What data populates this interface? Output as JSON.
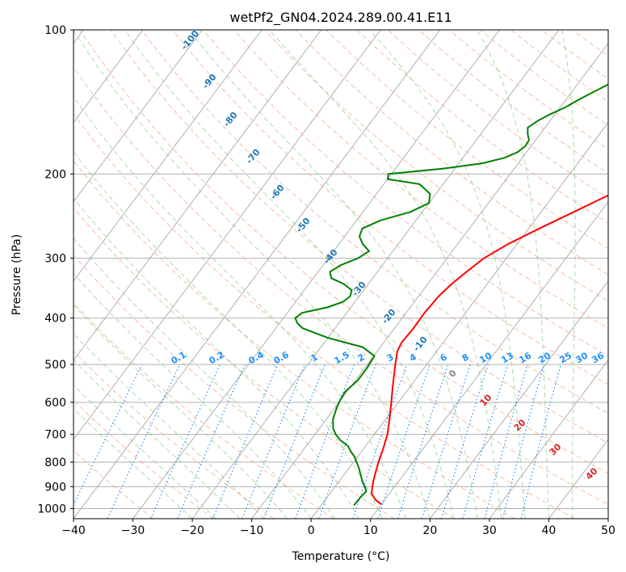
{
  "chart_data": {
    "type": "line",
    "title": "wetPf2_GN04.2024.289.00.41.E11",
    "xlabel": "Temperature (°C)",
    "ylabel": "Pressure (hPa)",
    "xlim": [
      -40,
      50
    ],
    "ylim": [
      1050,
      100
    ],
    "y_scale": "log",
    "grid": true,
    "x_ticks": [
      -40,
      -30,
      -20,
      -10,
      0,
      10,
      20,
      30,
      40,
      50
    ],
    "y_ticks": [
      1000,
      900,
      800,
      700,
      600,
      500,
      400,
      300,
      200,
      100
    ],
    "series": [
      {
        "color": "#ff0000",
        "p": [
          980,
          960,
          930,
          910,
          880,
          850,
          800,
          750,
          700,
          650,
          600,
          550,
          500,
          470,
          450,
          420,
          390,
          360,
          340,
          320,
          300,
          280,
          260,
          240,
          220,
          205,
          190,
          175,
          160,
          150,
          140,
          130,
          120,
          110,
          105,
          100
        ],
        "t": [
          10,
          8.5,
          7,
          6.5,
          5.8,
          5.2,
          4.2,
          3.3,
          2.2,
          0.6,
          -1.2,
          -3.2,
          -5.3,
          -6.6,
          -7,
          -6.8,
          -6.9,
          -6.6,
          -6,
          -5,
          -3.8,
          -1.5,
          1.8,
          5.5,
          9.5,
          12.3,
          13.5,
          15.3,
          17.2,
          18.6,
          19.5,
          20.4,
          21.6,
          23,
          25,
          28.4
        ]
      },
      {
        "color": "#008000",
        "p": [
          985,
          950,
          920,
          900,
          880,
          850,
          820,
          800,
          780,
          760,
          740,
          720,
          700,
          680,
          650,
          620,
          600,
          570,
          540,
          510,
          480,
          460,
          440,
          420,
          410,
          400,
          390,
          380,
          370,
          360,
          350,
          340,
          330,
          320,
          310,
          300,
          290,
          280,
          270,
          260,
          250,
          240,
          230,
          220,
          210,
          205,
          200,
          195,
          190,
          185,
          180,
          175,
          170,
          165,
          160,
          155,
          150,
          145,
          140,
          135,
          130,
          125,
          120,
          115,
          110,
          105,
          100
        ],
        "t": [
          5.5,
          5.6,
          5.8,
          5.0,
          4.0,
          2.8,
          1.5,
          0.5,
          -0.5,
          -1.8,
          -3.0,
          -5.0,
          -6.5,
          -7.7,
          -8.9,
          -9.6,
          -10.0,
          -10.3,
          -9.6,
          -9.6,
          -9.9,
          -13.0,
          -20.0,
          -25.5,
          -27.0,
          -28.0,
          -27.5,
          -24.0,
          -22.0,
          -21.5,
          -22.0,
          -24.0,
          -27.0,
          -28.0,
          -27.0,
          -25.0,
          -24.0,
          -26.0,
          -27.5,
          -28.0,
          -26.0,
          -22.0,
          -20.0,
          -21.0,
          -24.0,
          -30.0,
          -30.5,
          -22.0,
          -16.0,
          -13.0,
          -11.5,
          -11.0,
          -11.1,
          -12.1,
          -12.9,
          -12.1,
          -10.8,
          -9.1,
          -7.9,
          -6.4,
          -4.8,
          -2.9,
          -1.8,
          -0.6,
          0.2,
          0.7,
          1.0
        ]
      }
    ],
    "dry_adiabat_labels": [
      "-100",
      "-90",
      "-80",
      "-70",
      "-60",
      "-50",
      "-40",
      "-30",
      "-20",
      "-10"
    ],
    "mixing_ratio_labels": [
      "0.1",
      "0.2",
      "0.4",
      "0.6",
      "1",
      "1.5",
      "2",
      "3",
      "4",
      "6",
      "8",
      "10",
      "13",
      "16",
      "20",
      "25",
      "30",
      "36"
    ],
    "moist_adiabat_labels": [
      "0",
      "10",
      "20",
      "30",
      "40"
    ]
  },
  "colors": {
    "temperature": "#ff0000",
    "dewpoint": "#008000",
    "isotherm": "#b0b0b0",
    "isobar": "#b0b0b0",
    "dry_adiabat": "#f4a582",
    "moist_adiabat": "#74c476",
    "mixing_ratio": "#1e90ff"
  }
}
